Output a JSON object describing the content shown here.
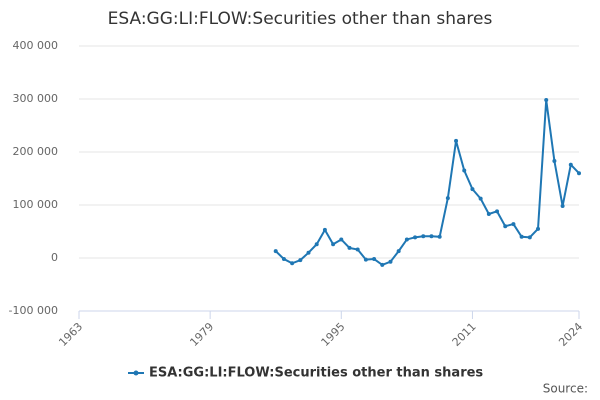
{
  "chart_data": {
    "type": "line",
    "title": "ESA:GG:LI:FLOW:Securities other than shares",
    "source": "Source:",
    "x": [
      1987,
      1988,
      1989,
      1990,
      1991,
      1992,
      1993,
      1994,
      1995,
      1996,
      1997,
      1998,
      1999,
      2000,
      2001,
      2002,
      2003,
      2004,
      2005,
      2006,
      2007,
      2008,
      2009,
      2010,
      2011,
      2012,
      2013,
      2014,
      2015,
      2016,
      2017,
      2018,
      2019,
      2020,
      2021,
      2022,
      2023,
      2024
    ],
    "series": [
      {
        "name": "ESA:GG:LI:FLOW:Securities other than shares",
        "color": "#1f77b4",
        "values": [
          13000,
          -2000,
          -10000,
          -4000,
          10000,
          26000,
          53000,
          26000,
          35000,
          19000,
          16000,
          -3000,
          -2000,
          -13000,
          -7000,
          13000,
          35000,
          39000,
          41000,
          41000,
          40000,
          113000,
          221000,
          165000,
          130000,
          112000,
          83000,
          88000,
          60000,
          64000,
          40000,
          39000,
          55000,
          298000,
          183000,
          98000,
          176000,
          160000
        ]
      }
    ],
    "xlim": [
      1963,
      2024
    ],
    "xticks": [
      1963,
      1979,
      1995,
      2011,
      2024
    ],
    "ylim": [
      -100000,
      400000
    ],
    "yticks": [
      {
        "value": -100000,
        "label": "-100 000"
      },
      0,
      {
        "value": 100000,
        "label": "100 000"
      },
      {
        "value": 200000,
        "label": "200 000"
      },
      {
        "value": 300000,
        "label": "300 000"
      },
      {
        "value": 400000,
        "label": "400 000"
      }
    ],
    "grid": true
  }
}
